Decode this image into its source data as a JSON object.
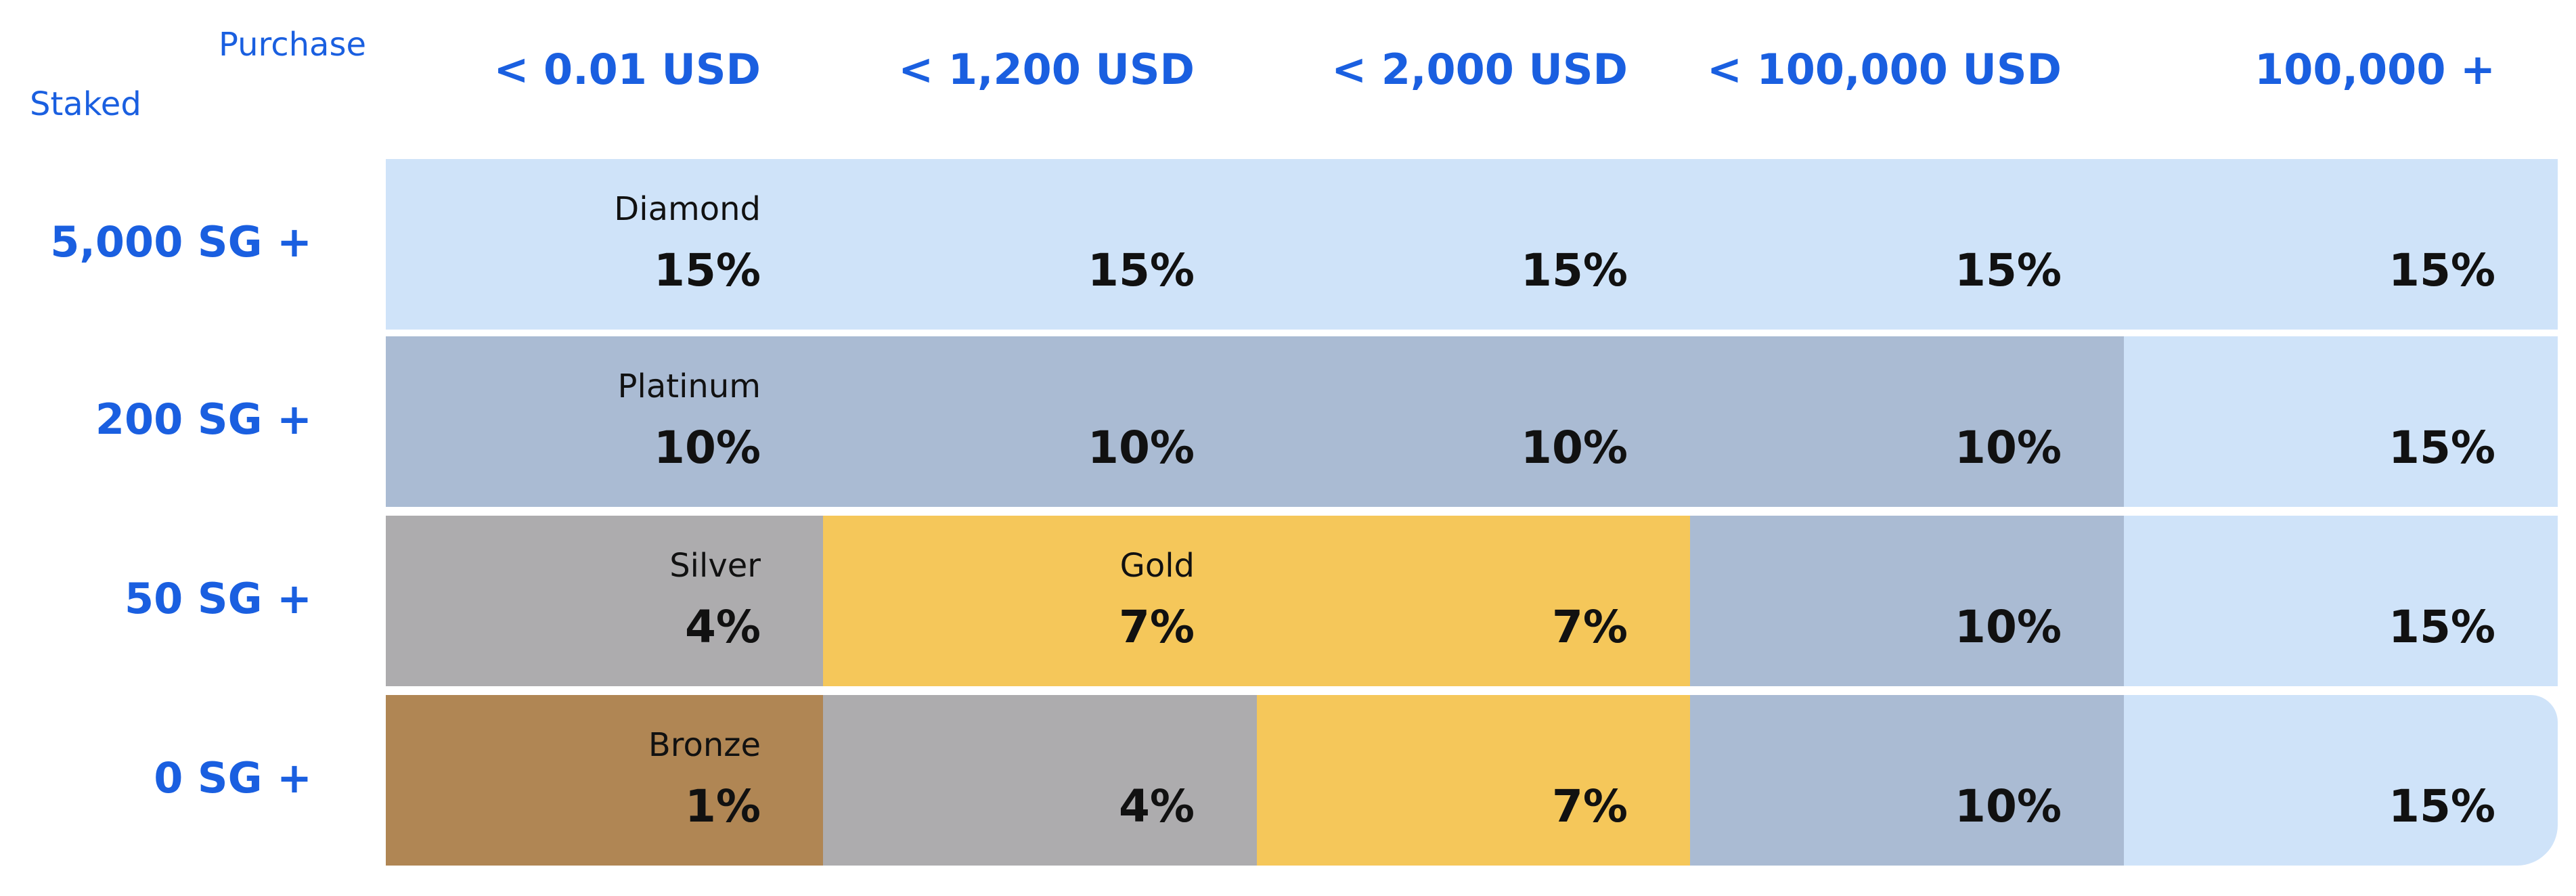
{
  "corner": {
    "purchase": "Purchase",
    "staked": "Staked"
  },
  "columns": [
    "< 0.01 USD",
    "< 1,200 USD",
    "< 2,000 USD",
    "< 100,000 USD",
    "100,000 +"
  ],
  "rows": [
    {
      "label": "5,000 SG +",
      "cells": [
        {
          "tier": "Diamond",
          "value": "15%",
          "color": "#cfe3f9"
        },
        {
          "value": "15%",
          "color": "#cfe3f9"
        },
        {
          "value": "15%",
          "color": "#cfe3f9"
        },
        {
          "value": "15%",
          "color": "#cfe3f9"
        },
        {
          "value": "15%",
          "color": "#cfe3f9"
        }
      ]
    },
    {
      "label": "200 SG +",
      "cells": [
        {
          "tier": "Platinum",
          "value": "10%",
          "color": "#aabbd3"
        },
        {
          "value": "10%",
          "color": "#aabbd3"
        },
        {
          "value": "10%",
          "color": "#aabbd3"
        },
        {
          "value": "10%",
          "color": "#aabbd3"
        },
        {
          "value": "15%",
          "color": "#cfe3f9"
        }
      ]
    },
    {
      "label": "50 SG +",
      "cells": [
        {
          "tier": "Silver",
          "value": "4%",
          "color": "#adacae"
        },
        {
          "tier": "Gold",
          "value": "7%",
          "color": "#f5c75a"
        },
        {
          "value": "7%",
          "color": "#f5c75a"
        },
        {
          "value": "10%",
          "color": "#aabbd3"
        },
        {
          "value": "15%",
          "color": "#cfe3f9"
        }
      ]
    },
    {
      "label": "0 SG +",
      "cells": [
        {
          "tier": "Bronze",
          "value": "1%",
          "color": "#b08654"
        },
        {
          "value": "4%",
          "color": "#adacae"
        },
        {
          "value": "7%",
          "color": "#f5c75a"
        },
        {
          "value": "10%",
          "color": "#aabbd3"
        },
        {
          "value": "15%",
          "color": "#cfe3f9"
        }
      ]
    }
  ]
}
